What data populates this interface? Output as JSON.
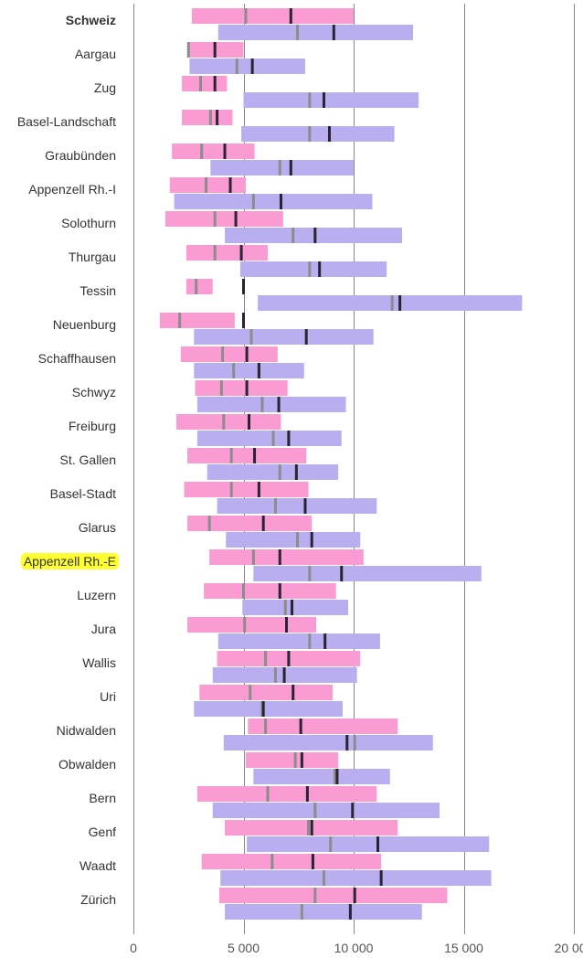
{
  "chart_data": {
    "type": "bar",
    "subtype": "floating-range-bars-with-markers",
    "title": "",
    "xlabel": "",
    "ylabel": "",
    "xlim": [
      0,
      20000
    ],
    "x_ticks": [
      0,
      5000,
      10000,
      15000,
      20000
    ],
    "x_tick_labels": [
      "0",
      "5 000",
      "10 000",
      "15 000",
      "20 000"
    ],
    "grid": "vertical lines at ticks",
    "legend": "none",
    "colors": {
      "series_a": "#fb9bd3",
      "series_b": "#b9aef0",
      "marker_dark": "#2b2233",
      "marker_grey": "#8c8c8c",
      "highlight": "#ffff33"
    },
    "highlighted_category": "Appenzell Rh.-E",
    "bold_category": "Schweiz",
    "categories": [
      "Schweiz",
      "Aargau",
      "Zug",
      "Basel-Landschaft",
      "Graubünden",
      "Appenzell Rh.-I",
      "Solothurn",
      "Thurgau",
      "Tessin",
      "Neuenburg",
      "Schaffhausen",
      "Schwyz",
      "Freiburg",
      "St. Gallen",
      "Basel-Stadt",
      "Glarus",
      "Appenzell Rh.-E",
      "Luzern",
      "Jura",
      "Wallis",
      "Uri",
      "Nidwalden",
      "Obwalden",
      "Bern",
      "Genf",
      "Waadt",
      "Zürich"
    ],
    "series": [
      {
        "color_key": "series_a",
        "low": [
          2650,
          2550,
          2200,
          2200,
          1750,
          1650,
          1450,
          2400,
          2400,
          1200,
          2150,
          2800,
          1950,
          2450,
          2300,
          2450,
          3450,
          3200,
          2450,
          3800,
          3000,
          5200,
          5100,
          2900,
          4150,
          3100,
          3900
        ],
        "high": [
          10000,
          5000,
          4250,
          4500,
          5500,
          5100,
          6800,
          6100,
          3600,
          4600,
          6550,
          7000,
          6700,
          7850,
          7950,
          8100,
          10450,
          9200,
          8300,
          10300,
          9050,
          12000,
          9300,
          11050,
          12000,
          11250,
          14250
        ],
        "grey_marker": [
          5100,
          2500,
          3050,
          3500,
          3100,
          3300,
          3700,
          3700,
          2850,
          2100,
          4050,
          4000,
          4100,
          4450,
          4450,
          3450,
          5450,
          5000,
          5050,
          6000,
          5300,
          6000,
          7350,
          6100,
          7950,
          6300,
          8250
        ],
        "dark_marker": [
          7150,
          3700,
          3700,
          3800,
          4150,
          4400,
          4650,
          4900,
          5000,
          5000,
          5150,
          5150,
          5250,
          5500,
          5700,
          5900,
          6650,
          6650,
          6950,
          7050,
          7250,
          7600,
          7650,
          7900,
          8100,
          8150,
          10050
        ]
      },
      {
        "color_key": "series_b",
        "low": [
          3850,
          2550,
          5000,
          4900,
          3500,
          1850,
          4150,
          4850,
          5650,
          2750,
          2750,
          2900,
          2900,
          3350,
          3800,
          4200,
          5450,
          4950,
          3850,
          3600,
          2750,
          4100,
          5450,
          3600,
          5150,
          3950,
          4150
        ],
        "high": [
          12700,
          7800,
          12950,
          11850,
          10000,
          10850,
          12200,
          11500,
          17650,
          10900,
          7750,
          9650,
          9450,
          9300,
          11050,
          10300,
          15800,
          9750,
          11200,
          10150,
          9500,
          13600,
          11650,
          13900,
          16150,
          16250,
          13100
        ],
        "grey_marker": [
          7450,
          4700,
          8000,
          8000,
          6650,
          5450,
          7250,
          8000,
          11750,
          5350,
          4550,
          5850,
          6350,
          6650,
          6450,
          7450,
          8000,
          6900,
          8000,
          6450,
          5850,
          10050,
          9150,
          8250,
          8950,
          8650,
          7650
        ],
        "dark_marker": [
          9100,
          5400,
          8650,
          8900,
          7150,
          6700,
          8250,
          8450,
          12100,
          7850,
          5700,
          6600,
          7050,
          7400,
          7800,
          8100,
          9450,
          7200,
          8700,
          6850,
          5900,
          9700,
          9250,
          9950,
          11100,
          11250,
          9850
        ]
      }
    ]
  }
}
